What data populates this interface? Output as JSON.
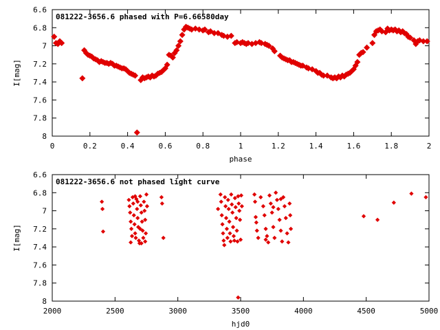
{
  "chart_data": [
    {
      "type": "scatter",
      "title": "081222-3656.6 phased with P=6.66580day",
      "xlabel": "phase",
      "ylabel": "I[mag]",
      "xlim": [
        0,
        2
      ],
      "ylim": [
        6.6,
        8
      ],
      "y_inverted": true,
      "grid": false,
      "marker_color": "#e00000",
      "x_ticks": [
        "0",
        "0.2",
        "0.4",
        "0.6",
        "0.8",
        "1",
        "1.2",
        "1.4",
        "1.6",
        "1.8",
        "2"
      ],
      "y_ticks": [
        "6.6",
        "6.8",
        "7",
        "7.2",
        "7.4",
        "7.6",
        "7.8",
        "8"
      ],
      "points": [
        [
          0.01,
          6.9
        ],
        [
          0.02,
          6.97
        ],
        [
          0.03,
          6.98
        ],
        [
          0.04,
          6.95
        ],
        [
          0.05,
          6.97
        ],
        [
          0.16,
          7.36
        ],
        [
          0.17,
          7.05
        ],
        [
          0.18,
          7.08
        ],
        [
          0.19,
          7.1
        ],
        [
          0.2,
          7.11
        ],
        [
          0.21,
          7.12
        ],
        [
          0.22,
          7.14
        ],
        [
          0.23,
          7.15
        ],
        [
          0.24,
          7.16
        ],
        [
          0.25,
          7.18
        ],
        [
          0.26,
          7.17
        ],
        [
          0.27,
          7.18
        ],
        [
          0.28,
          7.19
        ],
        [
          0.29,
          7.19
        ],
        [
          0.3,
          7.2
        ],
        [
          0.31,
          7.19
        ],
        [
          0.32,
          7.2
        ],
        [
          0.33,
          7.22
        ],
        [
          0.34,
          7.22
        ],
        [
          0.35,
          7.23
        ],
        [
          0.36,
          7.24
        ],
        [
          0.37,
          7.25
        ],
        [
          0.38,
          7.25
        ],
        [
          0.39,
          7.26
        ],
        [
          0.4,
          7.28
        ],
        [
          0.41,
          7.3
        ],
        [
          0.42,
          7.31
        ],
        [
          0.43,
          7.32
        ],
        [
          0.44,
          7.33
        ],
        [
          0.45,
          7.96
        ],
        [
          0.47,
          7.38
        ],
        [
          0.48,
          7.35
        ],
        [
          0.49,
          7.36
        ],
        [
          0.5,
          7.35
        ],
        [
          0.51,
          7.34
        ],
        [
          0.52,
          7.35
        ],
        [
          0.53,
          7.33
        ],
        [
          0.54,
          7.34
        ],
        [
          0.55,
          7.33
        ],
        [
          0.56,
          7.31
        ],
        [
          0.57,
          7.3
        ],
        [
          0.58,
          7.29
        ],
        [
          0.59,
          7.27
        ],
        [
          0.6,
          7.25
        ],
        [
          0.61,
          7.21
        ],
        [
          0.62,
          7.1
        ],
        [
          0.63,
          7.11
        ],
        [
          0.64,
          7.13
        ],
        [
          0.65,
          7.08
        ],
        [
          0.66,
          7.05
        ],
        [
          0.67,
          7.0
        ],
        [
          0.68,
          6.95
        ],
        [
          0.69,
          6.88
        ],
        [
          0.7,
          6.82
        ],
        [
          0.71,
          6.79
        ],
        [
          0.72,
          6.8
        ],
        [
          0.73,
          6.81
        ],
        [
          0.74,
          6.82
        ],
        [
          0.76,
          6.81
        ],
        [
          0.78,
          6.82
        ],
        [
          0.8,
          6.83
        ],
        [
          0.81,
          6.82
        ],
        [
          0.83,
          6.85
        ],
        [
          0.84,
          6.84
        ],
        [
          0.86,
          6.86
        ],
        [
          0.88,
          6.86
        ],
        [
          0.9,
          6.88
        ],
        [
          0.91,
          6.89
        ],
        [
          0.93,
          6.9
        ],
        [
          0.95,
          6.89
        ],
        [
          0.97,
          6.97
        ],
        [
          0.98,
          6.96
        ],
        [
          1.0,
          6.97
        ],
        [
          1.01,
          6.96
        ],
        [
          1.02,
          6.97
        ],
        [
          1.03,
          6.98
        ],
        [
          1.04,
          6.97
        ],
        [
          1.06,
          6.98
        ],
        [
          1.08,
          6.97
        ],
        [
          1.1,
          6.96
        ],
        [
          1.11,
          6.97
        ],
        [
          1.13,
          6.98
        ],
        [
          1.14,
          6.99
        ],
        [
          1.15,
          7.0
        ],
        [
          1.17,
          7.03
        ],
        [
          1.18,
          7.06
        ],
        [
          1.21,
          7.11
        ],
        [
          1.22,
          7.13
        ],
        [
          1.23,
          7.14
        ],
        [
          1.24,
          7.15
        ],
        [
          1.25,
          7.16
        ],
        [
          1.26,
          7.16
        ],
        [
          1.27,
          7.18
        ],
        [
          1.28,
          7.18
        ],
        [
          1.29,
          7.19
        ],
        [
          1.3,
          7.2
        ],
        [
          1.31,
          7.21
        ],
        [
          1.32,
          7.22
        ],
        [
          1.33,
          7.22
        ],
        [
          1.35,
          7.24
        ],
        [
          1.36,
          7.25
        ],
        [
          1.38,
          7.26
        ],
        [
          1.4,
          7.28
        ],
        [
          1.41,
          7.3
        ],
        [
          1.42,
          7.3
        ],
        [
          1.43,
          7.32
        ],
        [
          1.44,
          7.33
        ],
        [
          1.46,
          7.33
        ],
        [
          1.48,
          7.35
        ],
        [
          1.49,
          7.36
        ],
        [
          1.5,
          7.35
        ],
        [
          1.51,
          7.36
        ],
        [
          1.52,
          7.34
        ],
        [
          1.53,
          7.35
        ],
        [
          1.54,
          7.33
        ],
        [
          1.55,
          7.34
        ],
        [
          1.56,
          7.32
        ],
        [
          1.57,
          7.31
        ],
        [
          1.58,
          7.3
        ],
        [
          1.59,
          7.28
        ],
        [
          1.6,
          7.26
        ],
        [
          1.61,
          7.22
        ],
        [
          1.62,
          7.18
        ],
        [
          1.63,
          7.1
        ],
        [
          1.64,
          7.08
        ],
        [
          1.65,
          7.07
        ],
        [
          1.67,
          7.02
        ],
        [
          1.7,
          6.97
        ],
        [
          1.71,
          6.88
        ],
        [
          1.72,
          6.84
        ],
        [
          1.73,
          6.83
        ],
        [
          1.74,
          6.82
        ],
        [
          1.75,
          6.84
        ],
        [
          1.77,
          6.85
        ],
        [
          1.78,
          6.81
        ],
        [
          1.79,
          6.83
        ],
        [
          1.8,
          6.82
        ],
        [
          1.81,
          6.83
        ],
        [
          1.82,
          6.82
        ],
        [
          1.83,
          6.84
        ],
        [
          1.84,
          6.83
        ],
        [
          1.85,
          6.85
        ],
        [
          1.86,
          6.84
        ],
        [
          1.87,
          6.86
        ],
        [
          1.88,
          6.87
        ],
        [
          1.89,
          6.9
        ],
        [
          1.9,
          6.91
        ],
        [
          1.92,
          6.94
        ],
        [
          1.93,
          6.98
        ],
        [
          1.94,
          6.95
        ],
        [
          1.95,
          6.94
        ],
        [
          1.97,
          6.95
        ],
        [
          1.99,
          6.95
        ]
      ]
    },
    {
      "type": "scatter",
      "title": "081222-3656.6 not phased light curve",
      "xlabel": "hjd0",
      "ylabel": "I[mag]",
      "xlim": [
        2000,
        5000
      ],
      "ylim": [
        6.6,
        8
      ],
      "y_inverted": true,
      "grid": false,
      "marker_color": "#e00000",
      "x_ticks": [
        "2000",
        "2500",
        "3000",
        "3500",
        "4000",
        "4500",
        "5000"
      ],
      "y_ticks": [
        "6.6",
        "6.8",
        "7",
        "7.2",
        "7.4",
        "7.6",
        "7.8",
        "8"
      ],
      "points": [
        [
          2395,
          6.9
        ],
        [
          2400,
          6.98
        ],
        [
          2405,
          7.23
        ],
        [
          2610,
          6.88
        ],
        [
          2615,
          6.95
        ],
        [
          2620,
          7.02
        ],
        [
          2625,
          7.12
        ],
        [
          2630,
          7.2
        ],
        [
          2635,
          7.28
        ],
        [
          2640,
          6.85
        ],
        [
          2645,
          6.92
        ],
        [
          2650,
          7.05
        ],
        [
          2655,
          7.15
        ],
        [
          2660,
          7.25
        ],
        [
          2665,
          7.3
        ],
        [
          2670,
          6.87
        ],
        [
          2675,
          6.98
        ],
        [
          2680,
          7.08
        ],
        [
          2685,
          7.18
        ],
        [
          2690,
          7.33
        ],
        [
          2695,
          7.36
        ],
        [
          2700,
          6.84
        ],
        [
          2705,
          6.94
        ],
        [
          2710,
          7.02
        ],
        [
          2715,
          7.12
        ],
        [
          2720,
          7.22
        ],
        [
          2725,
          7.3
        ],
        [
          2730,
          6.9
        ],
        [
          2735,
          7.0
        ],
        [
          2740,
          7.1
        ],
        [
          2745,
          7.25
        ],
        [
          2750,
          6.82
        ],
        [
          2755,
          6.95
        ],
        [
          2625,
          7.35
        ],
        [
          2660,
          6.84
        ],
        [
          2700,
          7.2
        ],
        [
          2740,
          7.34
        ],
        [
          2710,
          7.36
        ],
        [
          2680,
          6.9
        ],
        [
          2870,
          6.85
        ],
        [
          2875,
          6.92
        ],
        [
          2885,
          7.3
        ],
        [
          3320,
          6.98
        ],
        [
          3340,
          6.82
        ],
        [
          3345,
          6.9
        ],
        [
          3350,
          7.05
        ],
        [
          3355,
          7.15
        ],
        [
          3360,
          7.25
        ],
        [
          3365,
          7.33
        ],
        [
          3370,
          7.38
        ],
        [
          3375,
          6.85
        ],
        [
          3380,
          6.95
        ],
        [
          3385,
          7.08
        ],
        [
          3390,
          7.2
        ],
        [
          3395,
          7.3
        ],
        [
          3400,
          6.88
        ],
        [
          3405,
          6.98
        ],
        [
          3410,
          7.12
        ],
        [
          3415,
          7.25
        ],
        [
          3420,
          7.34
        ],
        [
          3425,
          6.82
        ],
        [
          3430,
          6.93
        ],
        [
          3435,
          7.02
        ],
        [
          3440,
          7.18
        ],
        [
          3445,
          7.28
        ],
        [
          3450,
          7.33
        ],
        [
          3455,
          6.86
        ],
        [
          3460,
          6.96
        ],
        [
          3465,
          7.08
        ],
        [
          3470,
          7.22
        ],
        [
          3475,
          7.34
        ],
        [
          3480,
          6.84
        ],
        [
          3485,
          6.92
        ],
        [
          3490,
          7.0
        ],
        [
          3495,
          7.1
        ],
        [
          3500,
          7.32
        ],
        [
          3505,
          6.83
        ],
        [
          3510,
          6.95
        ],
        [
          3480,
          7.96
        ],
        [
          3610,
          6.82
        ],
        [
          3615,
          6.9
        ],
        [
          3620,
          7.07
        ],
        [
          3625,
          7.13
        ],
        [
          3630,
          7.22
        ],
        [
          3640,
          7.3
        ],
        [
          3660,
          6.85
        ],
        [
          3680,
          6.95
        ],
        [
          3690,
          7.05
        ],
        [
          3700,
          7.2
        ],
        [
          3710,
          7.28
        ],
        [
          3720,
          7.35
        ],
        [
          3730,
          6.83
        ],
        [
          3740,
          6.92
        ],
        [
          3750,
          7.02
        ],
        [
          3760,
          7.18
        ],
        [
          3770,
          7.3
        ],
        [
          3780,
          6.8
        ],
        [
          3790,
          6.88
        ],
        [
          3800,
          6.98
        ],
        [
          3810,
          7.1
        ],
        [
          3820,
          7.22
        ],
        [
          3830,
          7.34
        ],
        [
          3840,
          6.85
        ],
        [
          3850,
          6.95
        ],
        [
          3860,
          7.08
        ],
        [
          3870,
          7.25
        ],
        [
          3880,
          7.35
        ],
        [
          3890,
          6.92
        ],
        [
          3895,
          7.05
        ],
        [
          3900,
          7.2
        ],
        [
          3760,
          6.96
        ],
        [
          3820,
          6.87
        ],
        [
          3700,
          7.32
        ],
        [
          4480,
          7.06
        ],
        [
          4590,
          7.1
        ],
        [
          4720,
          6.91
        ],
        [
          4860,
          6.81
        ],
        [
          4975,
          6.85
        ]
      ]
    }
  ]
}
